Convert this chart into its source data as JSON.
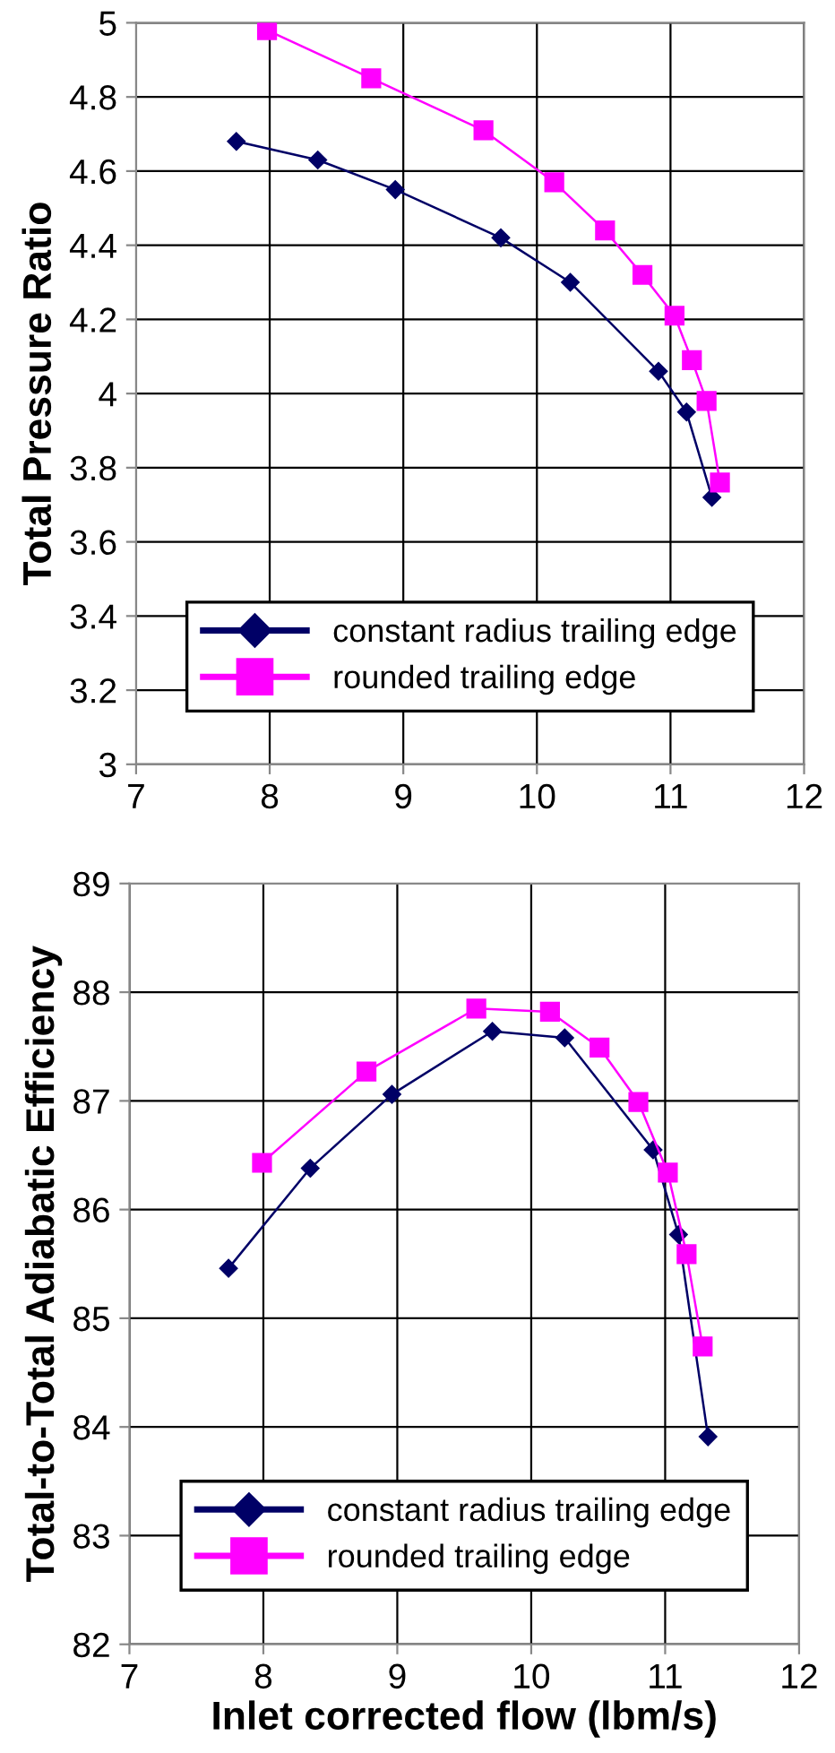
{
  "chart_data": [
    {
      "type": "line",
      "ylabel": "Total Pressure Ratio",
      "xlim": [
        7,
        12
      ],
      "xticks": [
        7,
        8,
        9,
        10,
        11,
        12
      ],
      "ylim": [
        3,
        5
      ],
      "yticks": [
        3,
        {
          "value": 3.2,
          "label": "3.2"
        },
        {
          "value": 3.4,
          "label": "3.4"
        },
        {
          "value": 3.6,
          "label": "3.6"
        },
        {
          "value": 3.8,
          "label": "3.8"
        },
        4,
        {
          "value": 4.2,
          "label": "4.2"
        },
        {
          "value": 4.4,
          "label": "4.4"
        },
        {
          "value": 4.6,
          "label": "4.6"
        },
        {
          "value": 4.8,
          "label": "4.8"
        },
        5
      ],
      "grid": true,
      "legend": "bottom",
      "series": [
        {
          "name": "constant radius trailing edge",
          "color": "#000066",
          "marker": "diamond",
          "x": [
            7.75,
            8.36,
            8.94,
            9.73,
            10.25,
            10.91,
            11.12,
            11.31
          ],
          "values": [
            4.68,
            4.63,
            4.55,
            4.42,
            4.3,
            4.06,
            3.95,
            3.72
          ]
        },
        {
          "name": "rounded trailing edge",
          "color": "#ff00ff",
          "marker": "square",
          "x": [
            7.98,
            8.76,
            9.6,
            10.13,
            10.51,
            10.79,
            11.03,
            11.16,
            11.27,
            11.37
          ],
          "values": [
            4.98,
            4.85,
            4.71,
            4.57,
            4.44,
            4.32,
            4.21,
            4.09,
            3.98,
            3.76
          ]
        }
      ]
    },
    {
      "type": "line",
      "ylabel": "Total-to-Total Adiabatic Efficiency",
      "xlabel": "Inlet corrected flow (lbm/s)",
      "xlim": [
        7,
        12
      ],
      "xticks": [
        7,
        8,
        9,
        10,
        11,
        12
      ],
      "ylim": [
        82,
        89
      ],
      "yticks": [
        82,
        83,
        84,
        85,
        86,
        87,
        88,
        89
      ],
      "grid": true,
      "legend": "bottom",
      "series": [
        {
          "name": "constant radius trailing edge",
          "color": "#000066",
          "marker": "diamond",
          "x": [
            7.74,
            8.35,
            8.96,
            9.71,
            10.25,
            10.91,
            11.1,
            11.32
          ],
          "values": [
            85.46,
            86.38,
            87.06,
            87.64,
            87.58,
            86.55,
            85.77,
            83.91
          ]
        },
        {
          "name": "rounded trailing edge",
          "color": "#ff00ff",
          "marker": "square",
          "x": [
            7.99,
            8.77,
            9.59,
            10.14,
            10.51,
            10.8,
            11.02,
            11.16,
            11.28
          ],
          "values": [
            86.43,
            87.27,
            87.85,
            87.82,
            87.49,
            86.99,
            86.34,
            85.59,
            84.74
          ]
        }
      ]
    }
  ]
}
